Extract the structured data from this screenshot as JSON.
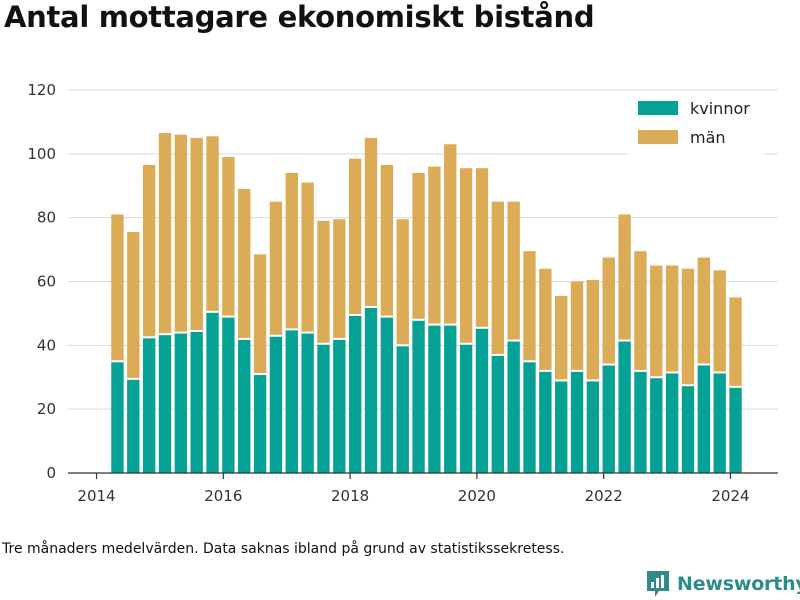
{
  "title": "Antal mottagare ekonomiskt bistånd",
  "footnote": "Tre månaders medelvärden. Data saknas ibland på grund av statistikssekretess.",
  "brand": {
    "name": "Newsworthy",
    "icon": "bar-chart-icon",
    "color": "#2d8c8a"
  },
  "colors": {
    "kvinnor": "#06a195",
    "man": "#dbab55",
    "grid": "#d9d9d9",
    "axis": "#333333"
  },
  "chart_data": {
    "type": "bar",
    "stacked": true,
    "title": "Antal mottagare ekonomiskt bistånd",
    "xlabel": "",
    "ylabel": "",
    "ylim": [
      0,
      120
    ],
    "yticks": [
      0,
      20,
      40,
      60,
      80,
      100,
      120
    ],
    "xlim": [
      2013.55,
      2024.75
    ],
    "xticks": [
      2014,
      2016,
      2018,
      2020,
      2022,
      2024
    ],
    "grid": true,
    "legend_position": "top-right",
    "x": [
      2014.33,
      2014.58,
      2014.83,
      2015.08,
      2015.33,
      2015.58,
      2015.83,
      2016.08,
      2016.33,
      2016.58,
      2016.83,
      2017.08,
      2017.33,
      2017.58,
      2017.83,
      2018.08,
      2018.33,
      2018.58,
      2018.83,
      2019.08,
      2019.33,
      2019.58,
      2019.83,
      2020.08,
      2020.33,
      2020.58,
      2020.83,
      2021.08,
      2021.33,
      2021.58,
      2021.83,
      2022.08,
      2022.33,
      2022.58,
      2022.83,
      2023.08,
      2023.33,
      2023.58,
      2023.83,
      2024.08
    ],
    "series": [
      {
        "name": "kvinnor",
        "color": "#06a195",
        "values": [
          35,
          29.5,
          42.5,
          43.5,
          44,
          44.5,
          50.5,
          49,
          42,
          31,
          43,
          45,
          44,
          40.5,
          42,
          49.5,
          52,
          49,
          40,
          48,
          46.5,
          46.5,
          40.5,
          45.5,
          37,
          41.5,
          35,
          32,
          29,
          32,
          29,
          34,
          41.5,
          32,
          30,
          31.5,
          27.5,
          34,
          31.5,
          27
        ]
      },
      {
        "name": "män",
        "color": "#dbab55",
        "values": [
          46,
          46,
          54,
          63,
          62,
          60.5,
          55,
          50,
          47,
          37.5,
          42,
          49,
          47,
          38.5,
          37.5,
          49,
          53,
          47.5,
          39.5,
          46,
          49.5,
          56.5,
          55,
          50,
          48,
          43.5,
          34.5,
          32,
          26.5,
          28,
          31.5,
          33.5,
          39.5,
          37.5,
          35,
          33.5,
          36.5,
          33.5,
          32,
          28
        ]
      }
    ]
  }
}
